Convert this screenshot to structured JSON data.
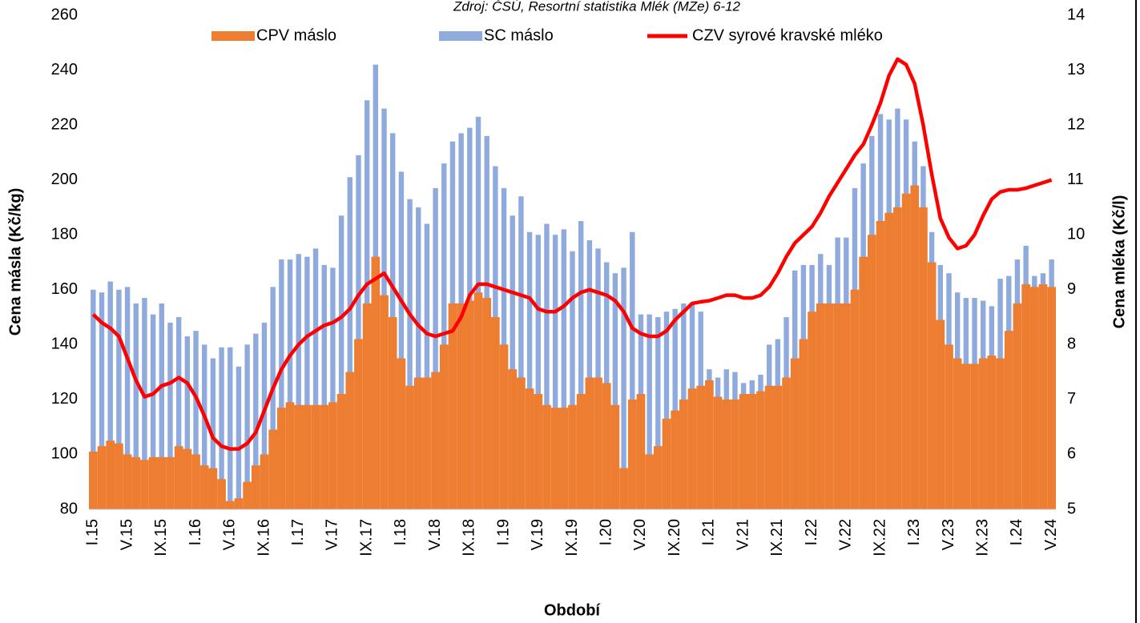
{
  "chart_data": {
    "type": "bar",
    "title": "Zdroj: ČSÚ, Resortní statistika Mlék (MZe) 6-12",
    "x_label": "Období",
    "y_label": "Cena másla (Kč/kg)",
    "y2_label": "Cena mléka (Kč/l)",
    "legend": "top",
    "categories": [
      "I.15",
      null,
      null,
      null,
      "V.15",
      null,
      null,
      null,
      "IX.15",
      null,
      null,
      null,
      "I.16",
      null,
      null,
      null,
      "V.16",
      null,
      null,
      null,
      "IX.16",
      null,
      null,
      null,
      "I.17",
      null,
      null,
      null,
      "V.17",
      null,
      null,
      null,
      "IX.17",
      null,
      null,
      null,
      "I.18",
      null,
      null,
      null,
      "V.18",
      null,
      null,
      null,
      "IX.18",
      null,
      null,
      null,
      "I.19",
      null,
      null,
      null,
      "V.19",
      null,
      null,
      null,
      "IX.19",
      null,
      null,
      null,
      "I.20",
      null,
      null,
      null,
      "V.20",
      null,
      null,
      null,
      "IX.20",
      null,
      null,
      null,
      "I.21",
      null,
      null,
      null,
      "V.21",
      null,
      null,
      null,
      "IX.21",
      null,
      null,
      null,
      "I.22",
      null,
      null,
      null,
      "V.22",
      null,
      null,
      null,
      "IX.22",
      null,
      null,
      null,
      "I.23",
      null,
      null,
      null,
      "V.23",
      null,
      null,
      null,
      "IX.23",
      null,
      null,
      null,
      "I.24",
      null,
      null,
      null,
      "V.24"
    ],
    "series": [
      {
        "name": "CPV máslo",
        "type": "bar",
        "color": "#ed7d31",
        "values": [
          101,
          103,
          105,
          104,
          100,
          99,
          98,
          99,
          99,
          99,
          103,
          102,
          100,
          96,
          95,
          91,
          83,
          84,
          90,
          96,
          100,
          109,
          117,
          119,
          118,
          118,
          118,
          118,
          119,
          122,
          130,
          142,
          155,
          172,
          158,
          150,
          135,
          125,
          128,
          128,
          130,
          140,
          155,
          155,
          156,
          159,
          157,
          150,
          140,
          131,
          128,
          124,
          122,
          118,
          117,
          117,
          118,
          122,
          128,
          128,
          126,
          118,
          95,
          120,
          122,
          100,
          103,
          113,
          116,
          120,
          124,
          125,
          127,
          121,
          120,
          120,
          122,
          122,
          123,
          125,
          125,
          128,
          135,
          142,
          152,
          155,
          155,
          155,
          155,
          160,
          172,
          180,
          185,
          188,
          190,
          195,
          198,
          190,
          170,
          149,
          140,
          135,
          133,
          133,
          135,
          136,
          135,
          145,
          155,
          162,
          161,
          162,
          161
        ]
      },
      {
        "name": "SC máslo",
        "type": "bar",
        "color": "#8faadc",
        "values": [
          160,
          159,
          163,
          160,
          161,
          155,
          157,
          151,
          155,
          148,
          150,
          143,
          145,
          140,
          135,
          139,
          139,
          132,
          140,
          144,
          148,
          161,
          171,
          171,
          173,
          172,
          175,
          169,
          168,
          187,
          201,
          209,
          229,
          242,
          226,
          217,
          203,
          193,
          190,
          184,
          197,
          206,
          214,
          217,
          219,
          223,
          216,
          205,
          197,
          187,
          194,
          181,
          180,
          184,
          180,
          182,
          174,
          185,
          178,
          175,
          170,
          166,
          168,
          181,
          151,
          151,
          150,
          152,
          153,
          155,
          155,
          152,
          131,
          128,
          131,
          130,
          126,
          127,
          129,
          140,
          142,
          150,
          167,
          169,
          169,
          173,
          169,
          179,
          179,
          197,
          206,
          216,
          224,
          222,
          226,
          222,
          214,
          205,
          181,
          169,
          166,
          159,
          157,
          157,
          156,
          154,
          164,
          165,
          171,
          176,
          165,
          166,
          171
        ]
      },
      {
        "name": "CZV syrové kravské mléko",
        "type": "line",
        "axis": "y2",
        "color": "#ff0000",
        "values": [
          8.55,
          8.4,
          8.3,
          8.15,
          7.75,
          7.35,
          7.05,
          7.1,
          7.25,
          7.3,
          7.4,
          7.3,
          7.05,
          6.7,
          6.3,
          6.15,
          6.1,
          6.1,
          6.2,
          6.4,
          6.8,
          7.2,
          7.55,
          7.8,
          8.0,
          8.15,
          8.25,
          8.35,
          8.4,
          8.5,
          8.65,
          8.9,
          9.1,
          9.2,
          9.3,
          9.05,
          8.8,
          8.55,
          8.35,
          8.2,
          8.15,
          8.2,
          8.25,
          8.5,
          8.9,
          9.1,
          9.1,
          9.05,
          9.0,
          8.95,
          8.9,
          8.85,
          8.65,
          8.6,
          8.6,
          8.7,
          8.85,
          8.95,
          9.0,
          8.95,
          8.9,
          8.8,
          8.6,
          8.3,
          8.2,
          8.15,
          8.15,
          8.25,
          8.45,
          8.6,
          8.75,
          8.78,
          8.8,
          8.85,
          8.9,
          8.9,
          8.85,
          8.85,
          8.9,
          9.05,
          9.3,
          9.6,
          9.85,
          10.0,
          10.15,
          10.4,
          10.7,
          10.95,
          11.2,
          11.45,
          11.65,
          12.0,
          12.4,
          12.9,
          13.2,
          13.1,
          12.75,
          12.0,
          11.1,
          10.3,
          9.95,
          9.75,
          9.8,
          10.0,
          10.35,
          10.65,
          10.78,
          10.82,
          10.82,
          10.85,
          10.9,
          10.95,
          11.0
        ]
      }
    ],
    "ylim": [
      80,
      260
    ],
    "yticks": [
      80,
      100,
      120,
      140,
      160,
      180,
      200,
      220,
      240,
      260
    ],
    "y2lim": [
      5,
      14
    ],
    "y2ticks": [
      5,
      6,
      7,
      8,
      9,
      10,
      11,
      12,
      13,
      14
    ]
  }
}
